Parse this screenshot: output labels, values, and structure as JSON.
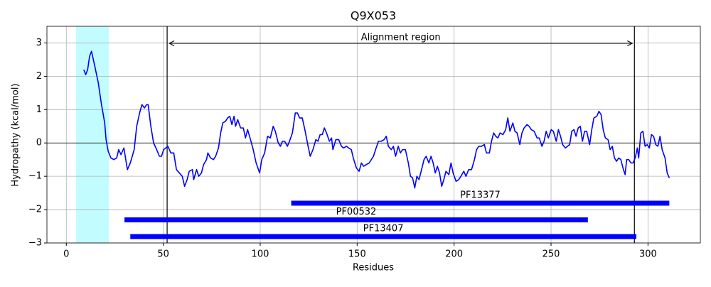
{
  "chart_data": {
    "type": "line",
    "title": "Q9X053",
    "xlabel": "Residues",
    "ylabel": "Hydropathy (kcal/mol)",
    "x": [
      9,
      10,
      11,
      12,
      13,
      14.7,
      16.5,
      18,
      19.8,
      20.5,
      21.6,
      23,
      24.5,
      26,
      27,
      28.2,
      29.7,
      31.5,
      33,
      35,
      36.3,
      37.8,
      39,
      40.3,
      41.4,
      42.2,
      43.6,
      45,
      46.6,
      48,
      49.1,
      50.2,
      51.3,
      52.4,
      53.9,
      55.4,
      56.8,
      58.3,
      59.8,
      61,
      62.3,
      63.4,
      65,
      65.7,
      67.2,
      68.3,
      69.7,
      70.8,
      72.3,
      73,
      74.4,
      75.9,
      77,
      78.5,
      79.6,
      80.7,
      82.1,
      83.2,
      84.3,
      85.4,
      86.5,
      87.3,
      88.4,
      89.9,
      91.3,
      92.4,
      93.5,
      95,
      96.4,
      97.9,
      99.7,
      100.8,
      102.3,
      103.8,
      105.2,
      106.7,
      107.8,
      109.3,
      110.4,
      111.5,
      112.6,
      114,
      115.1,
      116.6,
      118.1,
      119.2,
      120.3,
      121.7,
      123.2,
      124.7,
      125.8,
      127.2,
      128.7,
      129.8,
      130.9,
      132,
      133.1,
      134.2,
      135.7,
      136.8,
      137.5,
      139,
      140.5,
      141.9,
      143,
      144.5,
      145.6,
      147,
      148,
      149.6,
      151,
      152.2,
      153.3,
      154.7,
      156.2,
      157.3,
      158.4,
      159.5,
      161,
      162.4,
      163.9,
      165,
      166.1,
      167.6,
      168.7,
      169.8,
      171.2,
      172.3,
      173.4,
      174.9,
      176.4,
      177.5,
      178.6,
      179.7,
      180.8,
      181.9,
      183,
      184.5,
      185.6,
      187,
      188.1,
      189.2,
      190.3,
      191.4,
      192.5,
      193.6,
      194.7,
      195.8,
      197.3,
      198.4,
      199.5,
      201,
      202.4,
      203.5,
      205,
      206.1,
      207.5,
      209,
      210.5,
      211.6,
      212.7,
      214.1,
      215.6,
      216.7,
      218.2,
      219.3,
      220.4,
      221.5,
      222.6,
      223.7,
      225.2,
      226.6,
      227.7,
      228.8,
      230.3,
      231.4,
      232.5,
      233.9,
      235,
      236.1,
      237.6,
      238.7,
      239.8,
      241.3,
      242.8,
      243.9,
      245.3,
      246.4,
      247.5,
      248.6,
      250.1,
      251.2,
      252.7,
      253.8,
      254.9,
      256,
      257.4,
      258.5,
      259.6,
      260.7,
      261.8,
      262.9,
      264,
      265.1,
      266.2,
      267.3,
      268.4,
      269.9,
      271,
      272.1,
      273.6,
      274.7,
      275.8,
      276.9,
      278,
      279.4,
      280.5,
      281.6,
      282.7,
      283.8,
      284.9,
      286,
      287.1,
      288.2,
      289,
      290.1,
      291.2,
      292.3,
      293.4,
      294.5,
      295.2,
      296.3,
      297.4,
      298.5,
      299.6,
      300.7,
      301.8,
      302.9,
      304,
      305.1,
      306.2,
      307.3,
      308.8,
      309.9,
      311
    ],
    "values": [
      2.2,
      2.05,
      2.2,
      2.6,
      2.75,
      2.3,
      1.8,
      1.2,
      0.6,
      0.1,
      -0.25,
      -0.45,
      -0.5,
      -0.45,
      -0.2,
      -0.35,
      -0.15,
      -0.8,
      -0.6,
      -0.2,
      0.5,
      0.9,
      1.15,
      1.05,
      1.15,
      1.15,
      0.5,
      0,
      -0.2,
      -0.4,
      -0.4,
      -0.2,
      -0.15,
      -0.1,
      -0.3,
      -0.3,
      -0.8,
      -0.9,
      -1.0,
      -1.3,
      -1.1,
      -0.85,
      -0.8,
      -1.1,
      -0.8,
      -1.0,
      -0.9,
      -0.65,
      -0.5,
      -0.3,
      -0.45,
      -0.5,
      -0.4,
      -0.15,
      0.3,
      0.6,
      0.65,
      0.75,
      0.8,
      0.55,
      0.8,
      0.5,
      0.7,
      0.45,
      0.45,
      0.15,
      0.4,
      0.1,
      -0.2,
      -0.6,
      -0.9,
      -0.5,
      -0.3,
      0.2,
      0.15,
      0.5,
      0.35,
      0,
      -0.1,
      0.05,
      0.05,
      -0.1,
      0.05,
      0.3,
      0.9,
      0.9,
      0.75,
      0.75,
      0.35,
      -0.1,
      -0.4,
      -0.2,
      0.1,
      0.05,
      0.25,
      0.25,
      0.45,
      0.3,
      0.05,
      0.15,
      -0.2,
      0.1,
      0.1,
      -0.1,
      -0.15,
      -0.1,
      -0.15,
      -0.2,
      -0.45,
      -0.75,
      -0.85,
      -0.6,
      -0.7,
      -0.65,
      -0.6,
      -0.5,
      -0.4,
      -0.2,
      0.05,
      0.05,
      0.1,
      0.2,
      -0.1,
      -0.2,
      -0.1,
      -0.4,
      -0.1,
      -0.3,
      -0.2,
      -0.2,
      -0.6,
      -1.0,
      -1.05,
      -1.35,
      -1.0,
      -1.1,
      -0.85,
      -0.5,
      -0.4,
      -0.6,
      -0.4,
      -0.6,
      -0.9,
      -0.7,
      -0.9,
      -1.3,
      -1.1,
      -0.85,
      -0.95,
      -0.6,
      -0.9,
      -1.15,
      -1.1,
      -1.0,
      -0.85,
      -1.0,
      -0.8,
      -0.8,
      -0.5,
      -0.2,
      -0.1,
      -0.1,
      -0.05,
      -0.3,
      -0.3,
      0.05,
      0.3,
      0.2,
      0.15,
      0.3,
      0.25,
      0.4,
      0.75,
      0.35,
      0.6,
      0.35,
      0.3,
      -0.05,
      0.3,
      0.45,
      0.55,
      0.5,
      0.4,
      0.35,
      0.15,
      0.15,
      -0.1,
      0.05,
      0.35,
      0.15,
      0.4,
      0.35,
      0.05,
      0.4,
      0.2,
      -0.05,
      -0.15,
      -0.1,
      -0.05,
      0.35,
      0.4,
      0.2,
      0.45,
      0.5,
      0.05,
      0.35,
      0.35,
      -0.05,
      0.4,
      0.75,
      0.8,
      0.95,
      0.85,
      0.4,
      0.15,
      0.1,
      -0.2,
      -0.1,
      -0.45,
      -0.55,
      -0.45,
      -0.5,
      -0.75,
      -0.95,
      -0.5,
      -0.5,
      -0.6,
      -0.6,
      -0.45,
      -0.15,
      -0.45,
      0.3,
      0.35,
      -0.1,
      -0.05,
      -0.15,
      0.25,
      0.2,
      -0.05,
      -0.1,
      0.2,
      -0.2,
      -0.45,
      -0.9,
      -1.05
    ],
    "color": "#0000ff",
    "span": [
      5,
      22
    ],
    "span_color": "#c2fcff",
    "vlines": [
      52,
      293
    ],
    "annotation": "Alignment region",
    "domains": [
      {
        "label": "PF13377",
        "start": 116,
        "end": 311
      },
      {
        "label": "PF00532",
        "start": 30,
        "end": 269
      },
      {
        "label": "PF13407",
        "start": 33,
        "end": 294
      }
    ],
    "domain_color": "#0000ff",
    "hline": 0,
    "xlim": [
      -10,
      327
    ],
    "ylim": [
      -3,
      3.5
    ],
    "xticks": [
      0,
      50,
      100,
      150,
      200,
      250,
      300
    ],
    "yticks": [
      {
        "value": -3,
        "label": "−3"
      },
      {
        "value": -2,
        "label": "−2"
      },
      {
        "value": -1,
        "label": "−1"
      },
      0,
      1,
      2,
      3
    ],
    "grid": true
  }
}
